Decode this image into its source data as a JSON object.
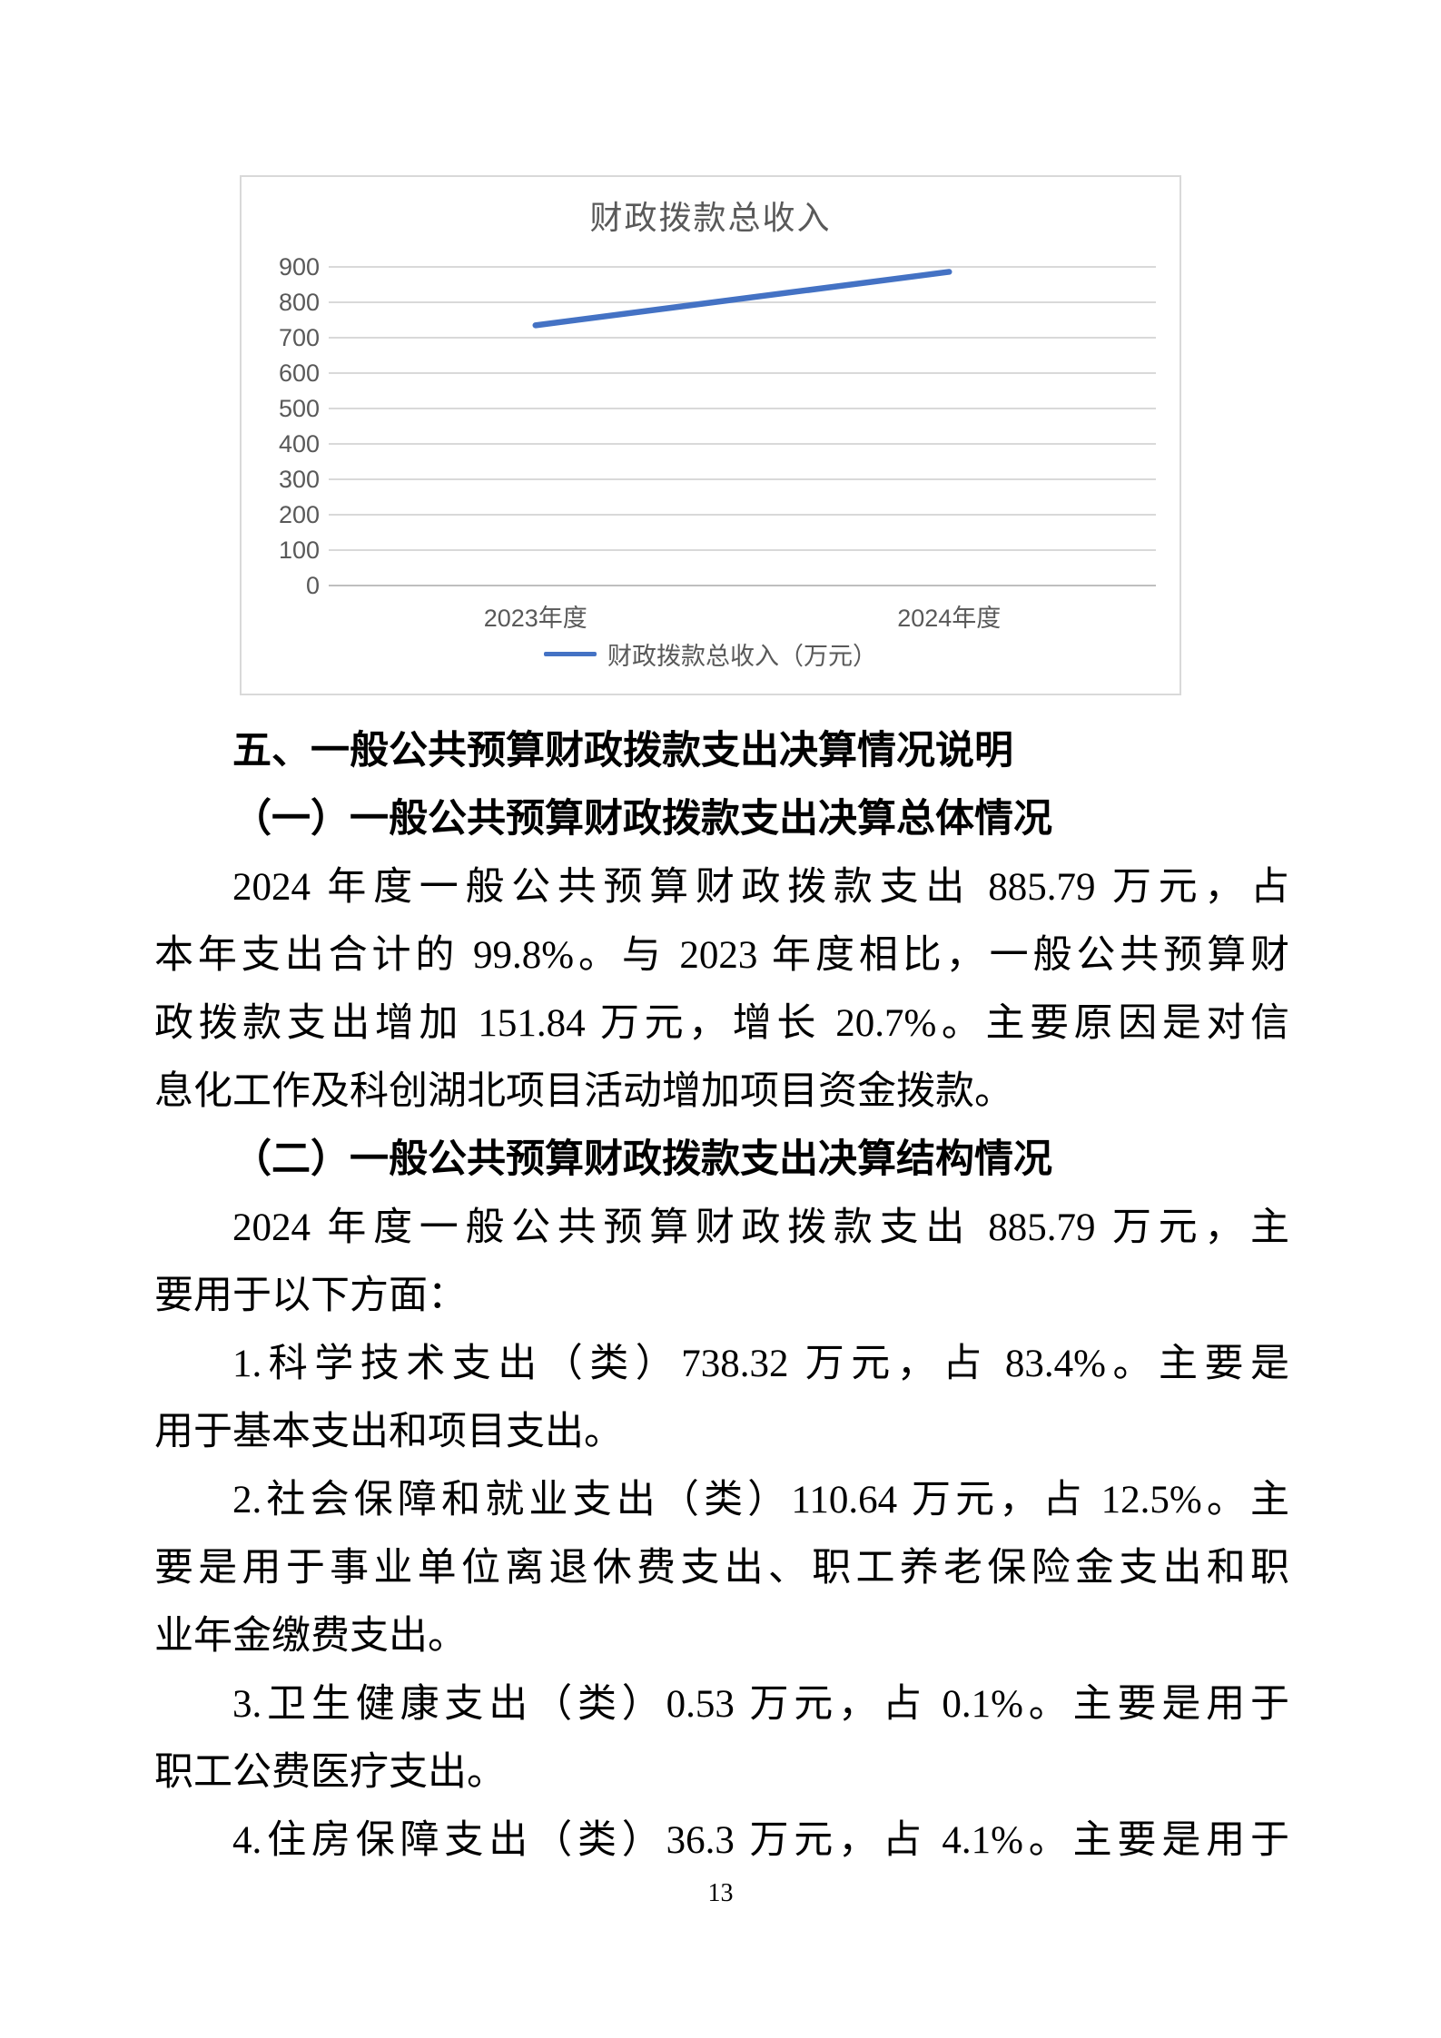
{
  "page": {
    "number": "13",
    "background": "#FFFFFF"
  },
  "chart": {
    "line_color": "#4472C4",
    "grid_color": "#D9D9D9",
    "axis_color": "#BFBFBF",
    "text_color": "#595959",
    "border_color": "#D9D9D9"
  },
  "chart_data": {
    "type": "line",
    "title": "财政拨款总收入",
    "categories": [
      "2023年度",
      "2024年度"
    ],
    "series": [
      {
        "name": "财政拨款总收入（万元）",
        "values": [
          735,
          886
        ]
      }
    ],
    "ylim": [
      0,
      900
    ],
    "ytick_step": 100,
    "grid": true,
    "legend_position": "bottom"
  },
  "document": {
    "blocks": [
      {
        "type": "h1",
        "indent": true,
        "text": "五、一般公共预算财政拨款支出决算情况说明"
      },
      {
        "type": "h2",
        "indent": true,
        "text": "（一）一般公共预算财政拨款支出决算总体情况"
      },
      {
        "type": "line",
        "indent": true,
        "fill": true,
        "text": "2024 年度一般公共预算财政拨款支出 885.79 万元，占"
      },
      {
        "type": "line",
        "indent": false,
        "fill": true,
        "text": "本年支出合计的 99.8%。与 2023 年度相比，一般公共预算财"
      },
      {
        "type": "line",
        "indent": false,
        "fill": true,
        "text": "政拨款支出增加 151.84 万元，增长 20.7%。主要原因是对信"
      },
      {
        "type": "line",
        "indent": false,
        "fill": false,
        "text": "息化工作及科创湖北项目活动增加项目资金拨款。"
      },
      {
        "type": "h2",
        "indent": true,
        "text": "（二）一般公共预算财政拨款支出决算结构情况"
      },
      {
        "type": "line",
        "indent": true,
        "fill": true,
        "text": "2024 年度一般公共预算财政拨款支出 885.79 万元，主"
      },
      {
        "type": "line",
        "indent": false,
        "fill": false,
        "text": "要用于以下方面："
      },
      {
        "type": "line",
        "indent": true,
        "fill": true,
        "text": "1.科学技术支出（类）738.32 万元，占 83.4%。主要是"
      },
      {
        "type": "line",
        "indent": false,
        "fill": false,
        "text": "用于基本支出和项目支出。"
      },
      {
        "type": "line",
        "indent": true,
        "fill": true,
        "text": "2.社会保障和就业支出（类）110.64 万元，占 12.5%。主"
      },
      {
        "type": "line",
        "indent": false,
        "fill": true,
        "text": "要是用于事业单位离退休费支出、职工养老保险金支出和职"
      },
      {
        "type": "line",
        "indent": false,
        "fill": false,
        "text": "业年金缴费支出。"
      },
      {
        "type": "line",
        "indent": true,
        "fill": true,
        "text": "3.卫生健康支出（类）0.53 万元，占 0.1%。主要是用于"
      },
      {
        "type": "line",
        "indent": false,
        "fill": false,
        "text": "职工公费医疗支出。"
      },
      {
        "type": "line",
        "indent": true,
        "fill": true,
        "text": "4.住房保障支出（类）36.3 万元，占 4.1%。主要是用于"
      }
    ]
  }
}
